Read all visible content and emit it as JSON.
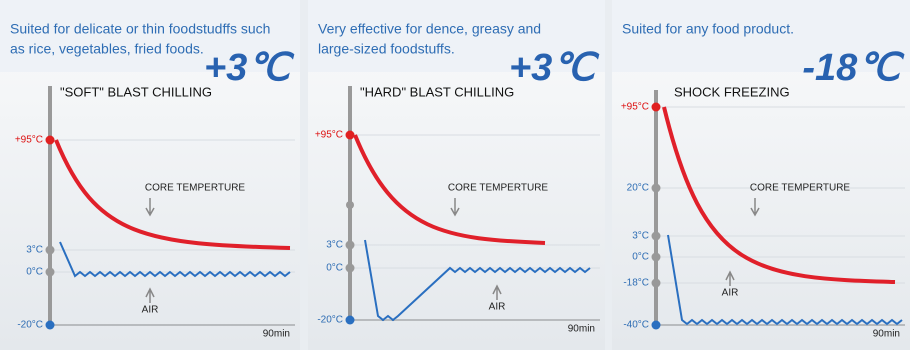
{
  "panels": [
    {
      "description": [
        "Suited for delicate or thin foodstudffs such",
        "as rice, vegetables, fried foods."
      ],
      "temperature": "+3℃",
      "title": "\"SOFT\" BLAST CHILLING",
      "y_labels": [
        "+95°C",
        "3°C",
        "0°C",
        "-20°C"
      ],
      "core_label": "CORE TEMPERTURE",
      "air_label": "AIR",
      "time_label": "90min"
    },
    {
      "description": [
        "Very effective for dence, greasy and",
        "large-sized foodstuffs."
      ],
      "temperature": "+3℃",
      "title": "\"HARD\" BLAST CHILLING",
      "y_labels": [
        "+95°C",
        "3°C",
        "0°C",
        "-20°C"
      ],
      "core_label": "CORE TEMPERTURE",
      "air_label": "AIR",
      "time_label": "90min"
    },
    {
      "description": [
        "Suited for any food product."
      ],
      "temperature": "-18℃",
      "title": "SHOCK FREEZING",
      "y_labels": [
        "+95°C",
        "20°C",
        "3°C",
        "0°C",
        "-18°C",
        "-40°C"
      ],
      "core_label": "CORE TEMPERTURE",
      "air_label": "AIR",
      "time_label": "90min"
    }
  ]
}
